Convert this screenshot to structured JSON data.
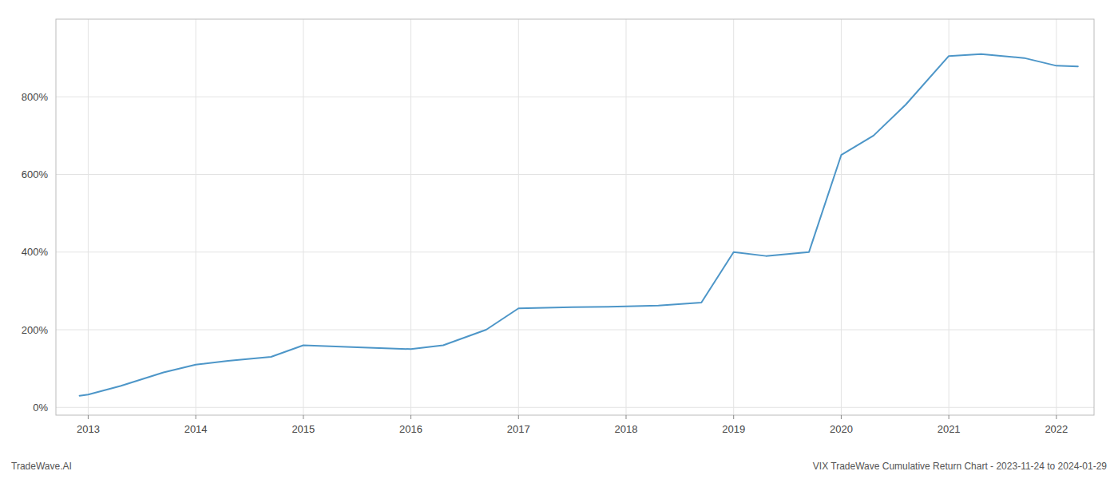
{
  "chart_data": {
    "type": "line",
    "x": [
      2012.92,
      2013.0,
      2013.3,
      2013.7,
      2014.0,
      2014.3,
      2014.7,
      2015.0,
      2015.5,
      2016.0,
      2016.3,
      2016.7,
      2017.0,
      2017.5,
      2018.0,
      2018.3,
      2018.7,
      2019.0,
      2019.3,
      2019.7,
      2020.0,
      2020.3,
      2020.6,
      2021.0,
      2021.3,
      2021.7,
      2022.0,
      2022.2
    ],
    "values": [
      30,
      33,
      55,
      90,
      110,
      120,
      130,
      160,
      155,
      150,
      160,
      200,
      255,
      258,
      260,
      262,
      270,
      400,
      390,
      400,
      650,
      700,
      780,
      905,
      910,
      900,
      880,
      878
    ],
    "color": "#4d96c8",
    "xlim": [
      2012.7,
      2022.35
    ],
    "ylim": [
      -20,
      1000
    ],
    "xticks": [
      2013,
      2014,
      2015,
      2016,
      2017,
      2018,
      2019,
      2020,
      2021,
      2022
    ],
    "yticks": [
      {
        "value": 0,
        "label": "0%"
      },
      {
        "value": 200,
        "label": "200%"
      },
      {
        "value": 400,
        "label": "400%"
      },
      {
        "value": 600,
        "label": "600%"
      },
      {
        "value": 800,
        "label": "800%"
      }
    ],
    "grid": true,
    "annotations": [
      "TradeWave.AI",
      "VIX TradeWave Cumulative Return Chart - 2023-11-24 to 2024-01-29"
    ]
  }
}
